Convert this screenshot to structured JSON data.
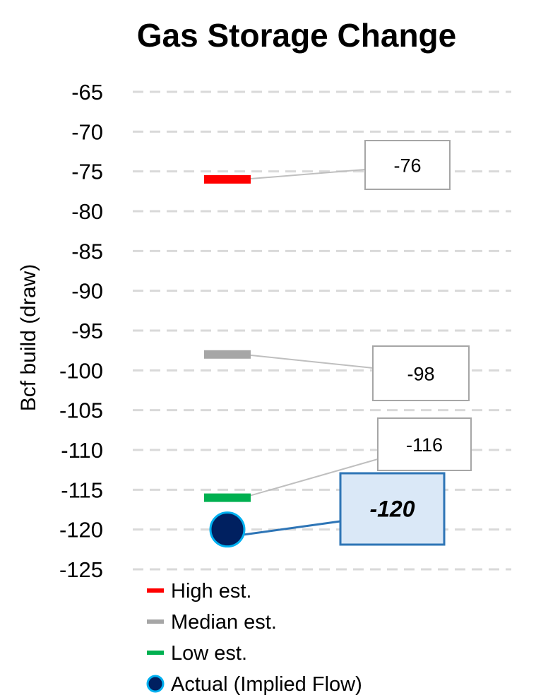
{
  "chart_data": {
    "type": "scatter",
    "title": "Gas Storage Change",
    "ylabel": "Bcf build (draw)",
    "xlabel": "",
    "ylim": [
      -125,
      -65
    ],
    "yticks": [
      -65,
      -70,
      -75,
      -80,
      -85,
      -90,
      -95,
      -100,
      -105,
      -110,
      -115,
      -120,
      -125
    ],
    "grid": "horizontal dashed",
    "legend_position": "bottom",
    "series": [
      {
        "name": "High est.",
        "value": -76,
        "label": "-76",
        "marker": "dash",
        "color": "#ff0000"
      },
      {
        "name": "Median est.",
        "value": -98,
        "label": "-98",
        "marker": "dash",
        "color": "#a6a6a6"
      },
      {
        "name": "Low est.",
        "value": -116,
        "label": "-116",
        "marker": "dash",
        "color": "#00b050"
      },
      {
        "name": "Actual (Implied Flow)",
        "value": -120,
        "label": "-120",
        "marker": "circle",
        "color": "#002060",
        "edge_color": "#00b0f0"
      }
    ]
  }
}
